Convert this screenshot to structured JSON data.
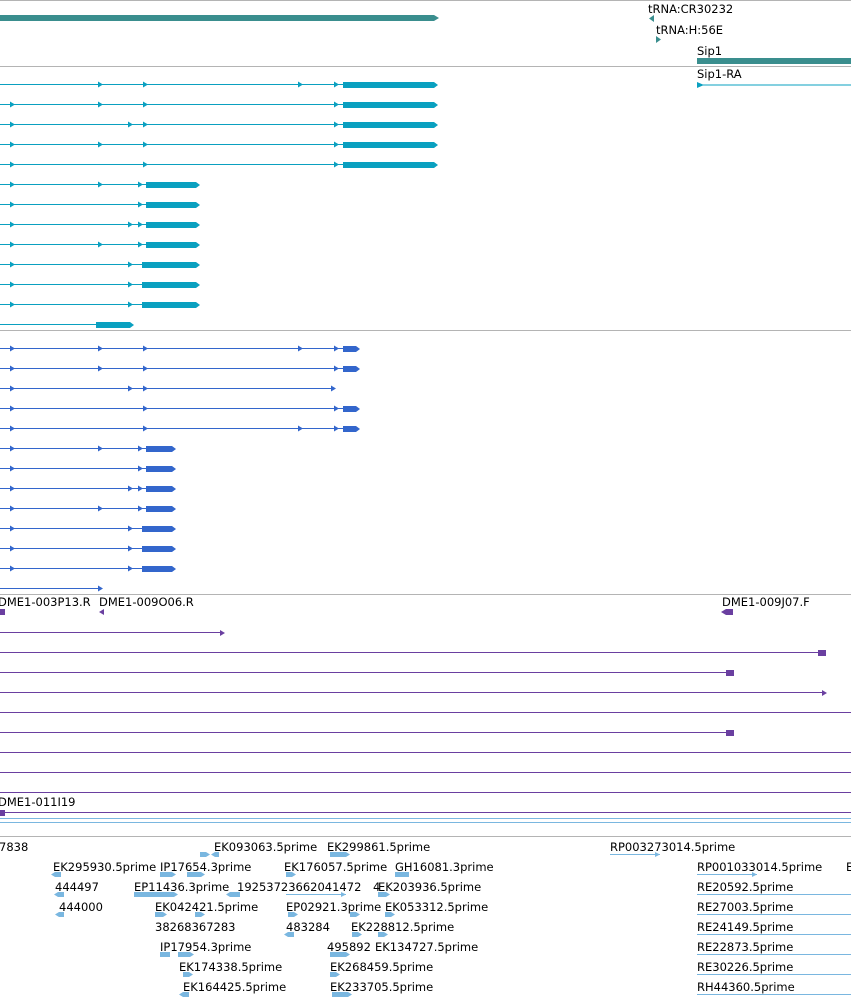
{
  "colors": {
    "gene_teal": "#3a8e8e",
    "transcript_cyan": "#0aa0c0",
    "cds_blue": "#3366cc",
    "clone_purple": "#6a3fa0",
    "est_lightblue": "#7ab7e0",
    "divider": "#b0b0b0",
    "label_text": "#000000"
  },
  "genes": {
    "labels": [
      "tRNA:CR30232",
      "tRNA:H:56E",
      "Sip1"
    ],
    "transcript_label": "Sip1-RA"
  },
  "clone_ends": {
    "labels": [
      "DME1-003P13.R",
      "DME1-009O06.R",
      "DME1-009J07.F",
      "DME1-011I19"
    ]
  },
  "est": {
    "labels": [
      "7838",
      "EK093063.5prime",
      "EK299861.5prime",
      "RP003273014.5prime",
      "EK295930.5prime",
      "IP17654.3prime",
      "EK176057.5prime",
      "GH16081.3prime",
      "RP001033014.5prime",
      "E",
      "444497",
      "EP11436.3prime",
      "19253723662041472",
      "4",
      "EK203936.5prime",
      "RE20592.5prime",
      "444000",
      "EK042421.5prime",
      "EP02921.3prime",
      "EK053312.5prime",
      "RE27003.5prime",
      "38268367283",
      "483284",
      "EK228812.5prime",
      "RE24149.5prime",
      "IP17954.3prime",
      "495892",
      "EK134727.5prime",
      "RE22873.5prime",
      "EK174338.5prime",
      "EK268459.5prime",
      "RE30226.5prime",
      "EK164425.5prime",
      "EK233705.5prime",
      "RH44360.5prime"
    ]
  }
}
